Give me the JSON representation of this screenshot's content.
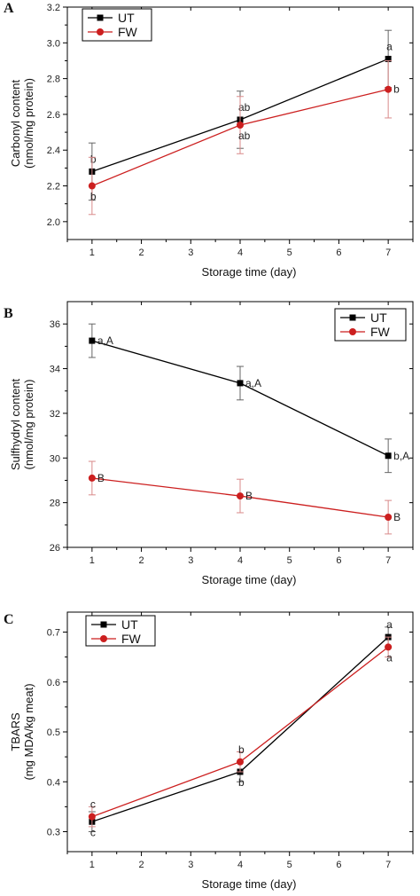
{
  "chart_data": [
    {
      "type": "line",
      "panel_label": "A",
      "xlabel": "Storage time (day)",
      "ylabel": [
        "Carbonyl content",
        "(nmol/mg protein)"
      ],
      "xlim": [
        0.5,
        7.5
      ],
      "ylim": [
        1.9,
        3.2
      ],
      "xticks": [
        1,
        2,
        3,
        4,
        5,
        6,
        7
      ],
      "yticks": [
        2.0,
        2.2,
        2.4,
        2.6,
        2.8,
        3.0,
        3.2
      ],
      "ytick_decimals": 1,
      "legend_position": "top-left",
      "x": [
        1,
        4,
        7
      ],
      "series": [
        {
          "name": "UT",
          "color": "#000000",
          "marker": "square",
          "values": [
            2.28,
            2.57,
            2.91
          ],
          "error": [
            0.16,
            0.16,
            0.16
          ],
          "labels": [
            "b",
            "ab",
            "a"
          ],
          "label_side": [
            "above",
            "above",
            "above"
          ]
        },
        {
          "name": "FW",
          "color": "#cc1f1f",
          "marker": "circle",
          "values": [
            2.2,
            2.54,
            2.74
          ],
          "error": [
            0.16,
            0.16,
            0.16
          ],
          "labels": [
            "b",
            "ab",
            "b"
          ],
          "label_side": [
            "below",
            "below",
            "right"
          ]
        }
      ]
    },
    {
      "type": "line",
      "panel_label": "B",
      "xlabel": "Storage time (day)",
      "ylabel": [
        "Sulfhydryl content",
        "(nmol/mg protein)"
      ],
      "xlim": [
        0.5,
        7.5
      ],
      "ylim": [
        26,
        37
      ],
      "xticks": [
        1,
        2,
        3,
        4,
        5,
        6,
        7
      ],
      "yticks": [
        26,
        28,
        30,
        32,
        34,
        36
      ],
      "ytick_decimals": 0,
      "legend_position": "top-right",
      "x": [
        1,
        4,
        7
      ],
      "series": [
        {
          "name": "UT",
          "color": "#000000",
          "marker": "square",
          "values": [
            35.25,
            33.35,
            30.1
          ],
          "error": [
            0.75,
            0.75,
            0.75
          ],
          "labels": [
            "a,A",
            "a,A",
            "b,A"
          ],
          "label_side": [
            "right",
            "right",
            "right"
          ]
        },
        {
          "name": "FW",
          "color": "#cc1f1f",
          "marker": "circle",
          "values": [
            29.1,
            28.3,
            27.35
          ],
          "error": [
            0.75,
            0.75,
            0.75
          ],
          "labels": [
            "B",
            "B",
            "B"
          ],
          "label_side": [
            "right",
            "right",
            "right"
          ]
        }
      ]
    },
    {
      "type": "line",
      "panel_label": "C",
      "xlabel": "Storage time (day)",
      "ylabel": [
        "TBARS",
        "(mg MDA/kg meat)"
      ],
      "xlim": [
        0.5,
        7.5
      ],
      "ylim": [
        0.26,
        0.74
      ],
      "xticks": [
        1,
        2,
        3,
        4,
        5,
        6,
        7
      ],
      "yticks": [
        0.3,
        0.4,
        0.5,
        0.6,
        0.7
      ],
      "ytick_decimals": 1,
      "legend_position": "top-left",
      "x": [
        1,
        4,
        7
      ],
      "series": [
        {
          "name": "UT",
          "color": "#000000",
          "marker": "square",
          "values": [
            0.32,
            0.42,
            0.69
          ],
          "error": [
            0.02,
            0.02,
            0.02
          ],
          "labels": [
            "c",
            "b",
            "a"
          ],
          "label_side": [
            "below",
            "below",
            "above"
          ]
        },
        {
          "name": "FW",
          "color": "#cc1f1f",
          "marker": "circle",
          "values": [
            0.33,
            0.44,
            0.67
          ],
          "error": [
            0.02,
            0.02,
            0.02
          ],
          "labels": [
            "c",
            "b",
            "a"
          ],
          "label_side": [
            "above",
            "above",
            "below"
          ]
        }
      ]
    }
  ]
}
